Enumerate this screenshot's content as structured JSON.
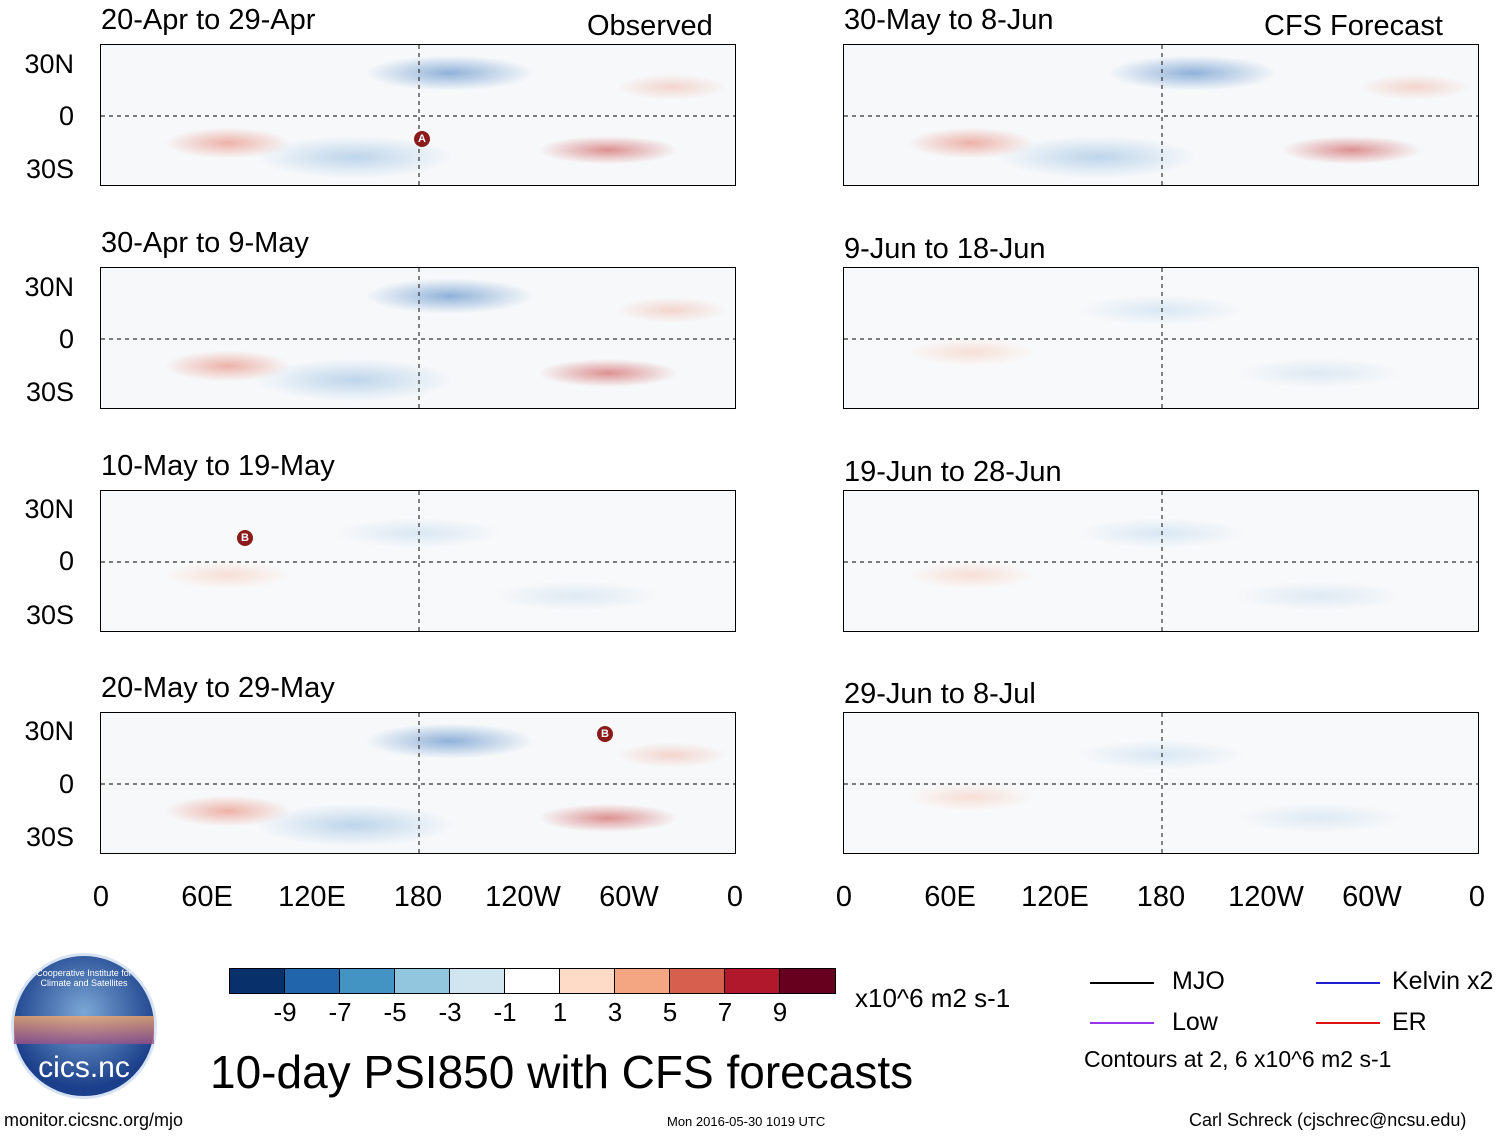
{
  "observed_label": "Observed",
  "forecast_label": "CFS Forecast",
  "observed_panels": [
    {
      "title": "20-Apr to 29-Apr"
    },
    {
      "title": "30-Apr to 9-May"
    },
    {
      "title": "10-May to 19-May"
    },
    {
      "title": "20-May to 29-May"
    }
  ],
  "forecast_panels": [
    {
      "title": "30-May to 8-Jun"
    },
    {
      "title": "9-Jun to 18-Jun"
    },
    {
      "title": "19-Jun to 28-Jun"
    },
    {
      "title": "29-Jun to 8-Jul"
    }
  ],
  "y_ticks": [
    "30N",
    "0",
    "30S"
  ],
  "x_ticks": [
    "0",
    "60E",
    "120E",
    "180",
    "120W",
    "60W",
    "0"
  ],
  "markers": {
    "a": "A",
    "b": "B"
  },
  "colorbar": {
    "colors": [
      "#08306b",
      "#2166ac",
      "#4393c3",
      "#92c5de",
      "#d1e5f0",
      "#ffffff",
      "#fddbc7",
      "#f4a582",
      "#d6604d",
      "#b2182b",
      "#67001f"
    ],
    "ticks": [
      "-9",
      "-7",
      "-5",
      "-3",
      "-1",
      "1",
      "3",
      "5",
      "7",
      "9"
    ],
    "units": "x10^6 m2 s-1"
  },
  "legend": {
    "mjo": {
      "label": "MJO",
      "color": "#000000"
    },
    "kelvin": {
      "label": "Kelvin x2",
      "color": "#1f1fd1"
    },
    "low": {
      "label": "Low",
      "color": "#9933ee"
    },
    "er": {
      "label": "ER",
      "color": "#e01010"
    },
    "contours_note": "Contours at 2, 6 x10^6 m2 s-1"
  },
  "main_title": "10-day PSI850 with CFS forecasts",
  "logo_text": "cics.nc",
  "logo_ring_text": "Cooperative Institute for Climate and Satellites",
  "footer": {
    "url": "monitor.cicsnc.org/mjo",
    "timestamp": "Mon 2016-05-30 1019 UTC",
    "author": "Carl Schreck (cjschrec@ncsu.edu)"
  }
}
